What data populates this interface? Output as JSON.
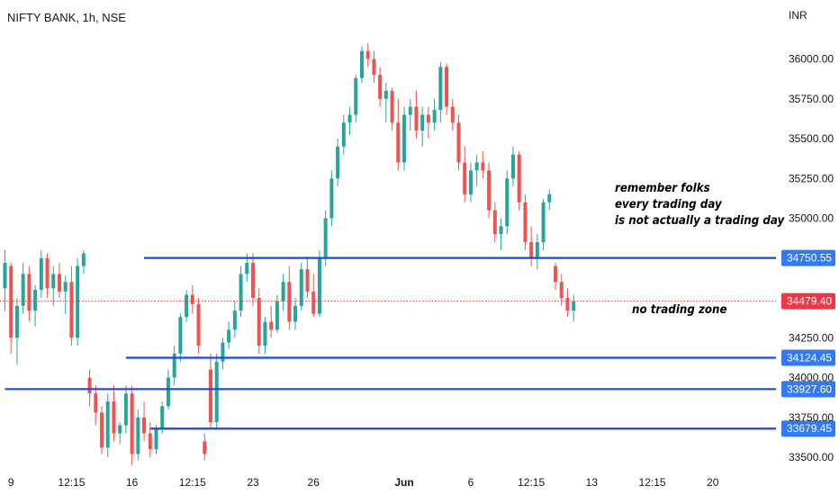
{
  "header": {
    "title": "NIFTY BANK, 1h, NSE",
    "currency": "INR"
  },
  "chart_data": {
    "type": "candlestick",
    "symbol": "NIFTY BANK",
    "interval": "1h",
    "exchange": "NSE",
    "currency": "INR",
    "ylim": [
      33430,
      36200
    ],
    "y_ticks": [
      {
        "value": 36000,
        "label": "36000.00"
      },
      {
        "value": 35750,
        "label": "35750.00"
      },
      {
        "value": 35500,
        "label": "35500.00"
      },
      {
        "value": 35250,
        "label": "35250.00"
      },
      {
        "value": 35000,
        "label": "35000.00"
      },
      {
        "value": 34250,
        "label": "34250.00"
      },
      {
        "value": 34000,
        "label": "34000.00"
      },
      {
        "value": 33750,
        "label": "33750.00"
      },
      {
        "value": 33500,
        "label": "33500.00"
      }
    ],
    "x_ticks": [
      {
        "bar": 1,
        "label": "9"
      },
      {
        "bar": 11,
        "label": "12:15"
      },
      {
        "bar": 21,
        "label": "16"
      },
      {
        "bar": 31,
        "label": "12:15"
      },
      {
        "bar": 41,
        "label": "23"
      },
      {
        "bar": 51,
        "label": "26"
      },
      {
        "bar": 66,
        "label": "Jun",
        "bold": true
      },
      {
        "bar": 77,
        "label": "6"
      },
      {
        "bar": 87,
        "label": "12:15"
      },
      {
        "bar": 97,
        "label": "13"
      },
      {
        "bar": 107,
        "label": "12:15"
      },
      {
        "bar": 117,
        "label": "20"
      }
    ],
    "current_price": {
      "value": 34479.4,
      "label": "34479.40"
    },
    "horizontal_lines": [
      {
        "value": 34750.55,
        "label": "34750.55",
        "start_bar": 23
      },
      {
        "value": 34124.45,
        "label": "34124.45",
        "start_bar": 20
      },
      {
        "value": 33927.6,
        "label": "33927.60",
        "start_bar": 0
      },
      {
        "value": 33679.45,
        "label": "33679.45",
        "start_bar": 24
      }
    ],
    "candles": [
      [
        34560,
        34800,
        34420,
        34720
      ],
      [
        34700,
        34720,
        34150,
        34250
      ],
      [
        34250,
        34500,
        34080,
        34450
      ],
      [
        34450,
        34720,
        34400,
        34650
      ],
      [
        34650,
        34700,
        34350,
        34420
      ],
      [
        34420,
        34580,
        34320,
        34550
      ],
      [
        34550,
        34800,
        34500,
        34750
      ],
      [
        34750,
        34780,
        34500,
        34560
      ],
      [
        34560,
        34700,
        34450,
        34650
      ],
      [
        34650,
        34720,
        34500,
        34540
      ],
      [
        34540,
        34640,
        34400,
        34600
      ],
      [
        34600,
        34700,
        34200,
        34250
      ],
      [
        34250,
        34750,
        34200,
        34700
      ],
      [
        34700,
        34800,
        34650,
        34780
      ],
      [
        34000,
        34050,
        33820,
        33900
      ],
      [
        33900,
        33950,
        33700,
        33780
      ],
      [
        33780,
        33820,
        33520,
        33560
      ],
      [
        33560,
        33900,
        33500,
        33850
      ],
      [
        33850,
        33950,
        33600,
        33650
      ],
      [
        33650,
        33720,
        33580,
        33700
      ],
      [
        33700,
        33950,
        33650,
        33900
      ],
      [
        33900,
        33950,
        33450,
        33520
      ],
      [
        33520,
        33800,
        33480,
        33750
      ],
      [
        33750,
        33850,
        33600,
        33650
      ],
      [
        33650,
        33720,
        33500,
        33550
      ],
      [
        33550,
        33700,
        33520,
        33680
      ],
      [
        33680,
        33850,
        33650,
        33820
      ],
      [
        33820,
        34050,
        33800,
        34000
      ],
      [
        34000,
        34200,
        33950,
        34150
      ],
      [
        34150,
        34400,
        34100,
        34380
      ],
      [
        34380,
        34550,
        34350,
        34520
      ],
      [
        34520,
        34580,
        34400,
        34460
      ],
      [
        34460,
        34500,
        34150,
        34200
      ],
      [
        33600,
        33650,
        33480,
        33520
      ],
      [
        34050,
        34150,
        33680,
        33720
      ],
      [
        33720,
        34150,
        33680,
        34100
      ],
      [
        34100,
        34250,
        34050,
        34220
      ],
      [
        34220,
        34350,
        34180,
        34300
      ],
      [
        34300,
        34480,
        34250,
        34420
      ],
      [
        34420,
        34700,
        34380,
        34650
      ],
      [
        34650,
        34780,
        34600,
        34720
      ],
      [
        34720,
        34780,
        34450,
        34500
      ],
      [
        34500,
        34560,
        34150,
        34200
      ],
      [
        34200,
        34380,
        34150,
        34350
      ],
      [
        34350,
        34450,
        34250,
        34300
      ],
      [
        34300,
        34520,
        34280,
        34480
      ],
      [
        34480,
        34650,
        34420,
        34600
      ],
      [
        34600,
        34700,
        34300,
        34350
      ],
      [
        34350,
        34500,
        34300,
        34450
      ],
      [
        34450,
        34720,
        34420,
        34680
      ],
      [
        34680,
        34760,
        34500,
        34540
      ],
      [
        34540,
        34650,
        34380,
        34400
      ],
      [
        34400,
        34800,
        34380,
        34750
      ],
      [
        34750,
        35050,
        34700,
        35000
      ],
      [
        35000,
        35300,
        34950,
        35250
      ],
      [
        35250,
        35500,
        35200,
        35450
      ],
      [
        35450,
        35650,
        35400,
        35600
      ],
      [
        35600,
        35700,
        35520,
        35650
      ],
      [
        35650,
        35900,
        35600,
        35880
      ],
      [
        35880,
        36080,
        35850,
        36050
      ],
      [
        36050,
        36100,
        35950,
        36000
      ],
      [
        36000,
        36050,
        35850,
        35900
      ],
      [
        35900,
        35950,
        35700,
        35750
      ],
      [
        35750,
        35850,
        35600,
        35800
      ],
      [
        35800,
        35820,
        35550,
        35600
      ],
      [
        35600,
        35750,
        35300,
        35350
      ],
      [
        35350,
        35700,
        35300,
        35650
      ],
      [
        35650,
        35750,
        35550,
        35700
      ],
      [
        35700,
        35800,
        35500,
        35550
      ],
      [
        35550,
        35700,
        35450,
        35650
      ],
      [
        35650,
        35700,
        35500,
        35600
      ],
      [
        35600,
        35750,
        35550,
        35680
      ],
      [
        35680,
        35980,
        35600,
        35950
      ],
      [
        35950,
        35970,
        35650,
        35700
      ],
      [
        35700,
        35750,
        35550,
        35600
      ],
      [
        35600,
        35650,
        35300,
        35350
      ],
      [
        35350,
        35450,
        35100,
        35150
      ],
      [
        35150,
        35350,
        35100,
        35300
      ],
      [
        35300,
        35400,
        35200,
        35350
      ],
      [
        35350,
        35420,
        35250,
        35300
      ],
      [
        35300,
        35350,
        35000,
        35050
      ],
      [
        35050,
        35100,
        34850,
        34900
      ],
      [
        34900,
        35000,
        34800,
        34950
      ],
      [
        34950,
        35300,
        34900,
        35250
      ],
      [
        35250,
        35450,
        35200,
        35400
      ],
      [
        35400,
        35420,
        35050,
        35100
      ],
      [
        35100,
        35150,
        34800,
        34850
      ],
      [
        34850,
        34950,
        34700,
        34750
      ],
      [
        34750,
        34900,
        34680,
        34850
      ],
      [
        34850,
        35120,
        34800,
        35100
      ],
      [
        35100,
        35180,
        35050,
        35150
      ],
      [
        34700,
        34720,
        34550,
        34600
      ],
      [
        34600,
        34650,
        34450,
        34500
      ],
      [
        34500,
        34560,
        34380,
        34420
      ],
      [
        34420,
        34520,
        34350,
        34479
      ]
    ]
  },
  "annotations": {
    "note_trading_day": [
      "remember folks",
      "every trading day",
      "is not actually a trading day"
    ],
    "note_zone": "no trading zone"
  },
  "colors": {
    "up": "#26a69a",
    "down": "#ef5350",
    "level_line": "#1848e6",
    "price_tag": "#3179f5",
    "current_tag": "#f23645",
    "grid": "#ffffff",
    "text": "#131722"
  }
}
